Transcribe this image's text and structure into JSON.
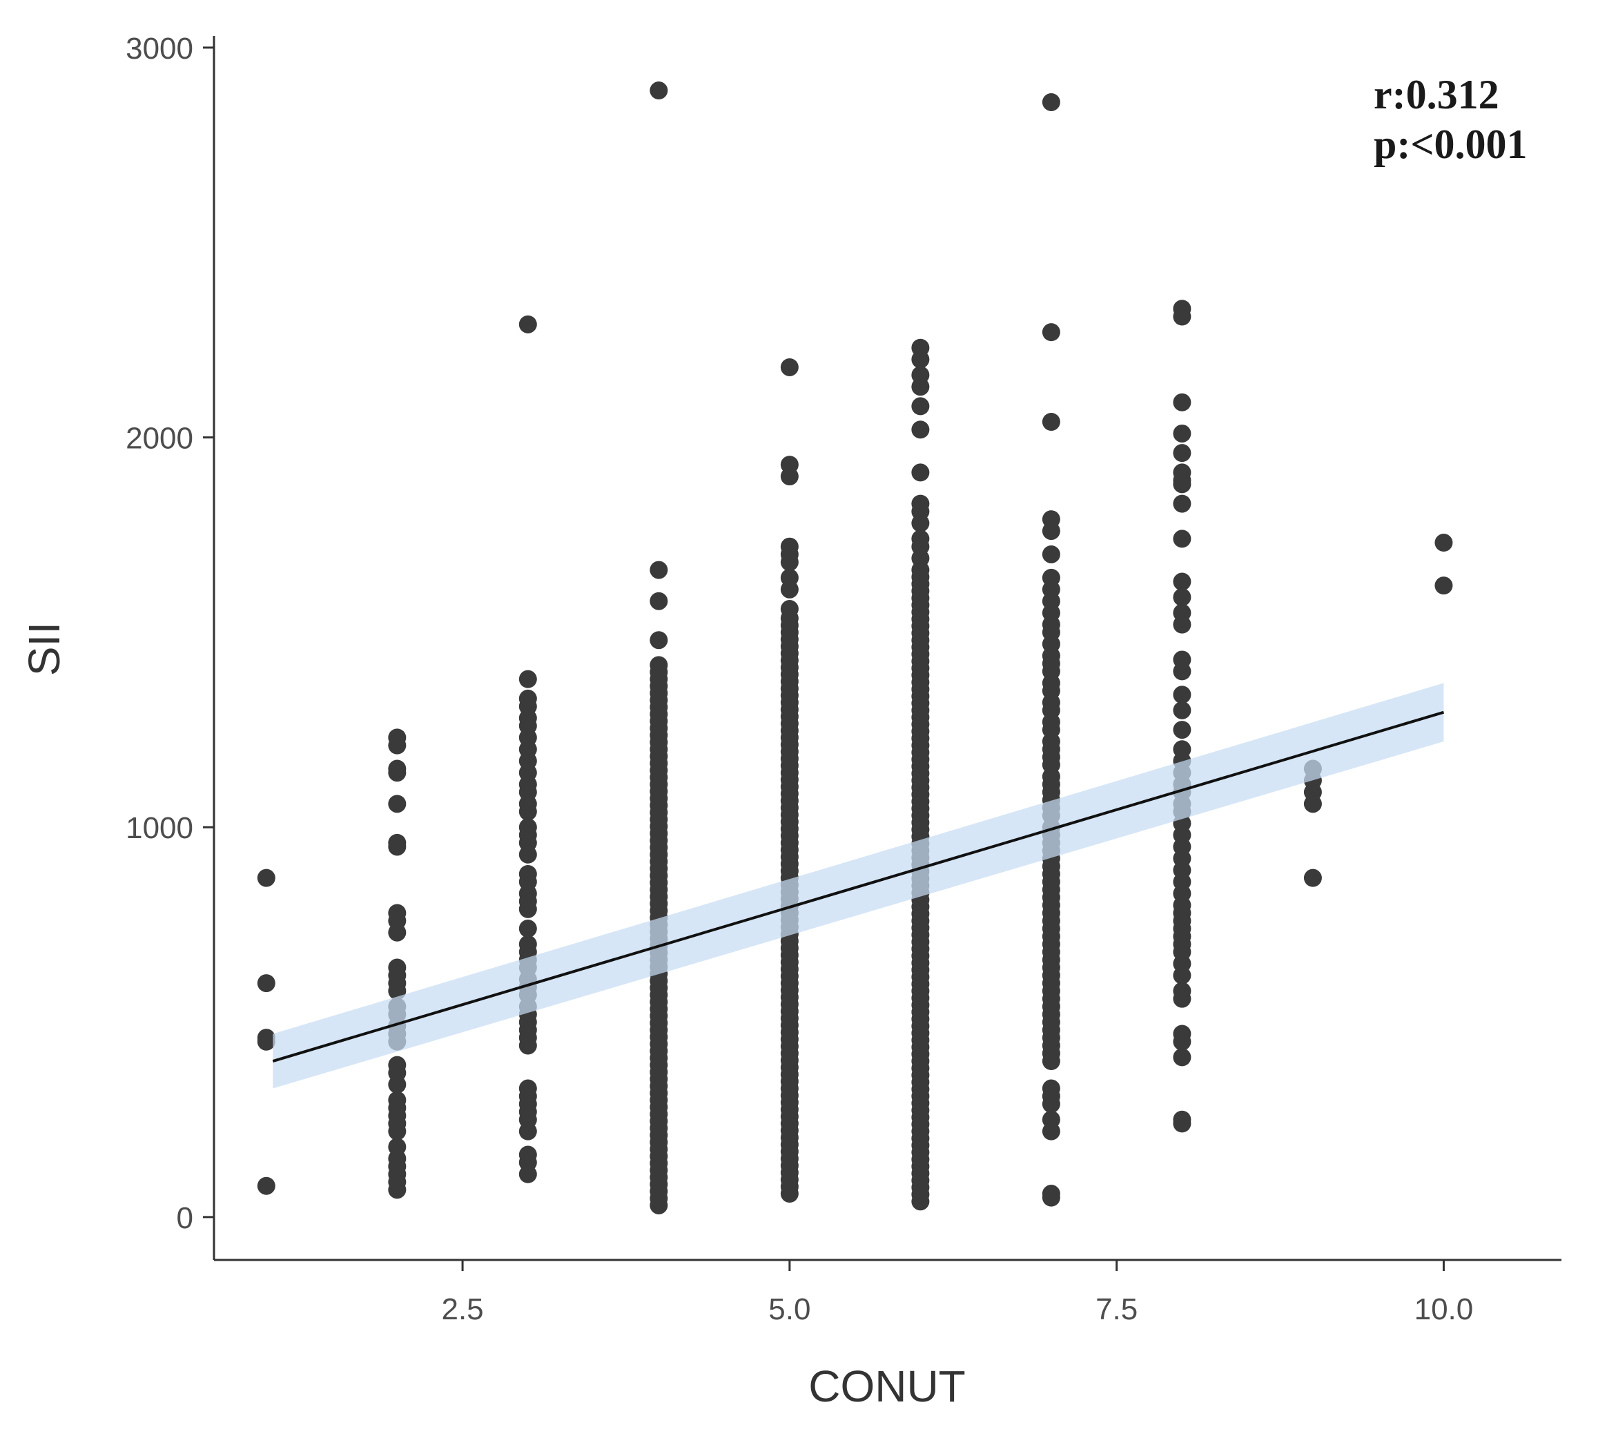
{
  "chart_data": {
    "type": "scatter",
    "title": "",
    "xlabel": "CONUT",
    "ylabel": "SII",
    "xlim": [
      0.6,
      10.9
    ],
    "ylim": [
      -110,
      3030
    ],
    "x_ticks": [
      2.5,
      5.0,
      7.5,
      10.0
    ],
    "x_tick_labels": [
      "2.5",
      "5.0",
      "7.5",
      "10.0"
    ],
    "y_ticks": [
      0,
      1000,
      2000,
      3000
    ],
    "y_tick_labels": [
      "0",
      "1000",
      "2000",
      "3000"
    ],
    "grid": false,
    "legend": "none",
    "annotations": [
      "r:0.312",
      "p:<0.001"
    ],
    "columns": [
      {
        "x": 1,
        "values": [
          870,
          600,
          460,
          450,
          80
        ]
      },
      {
        "x": 2,
        "values": [
          1230,
          1210,
          1150,
          1140,
          1060,
          960,
          950,
          780,
          760,
          730,
          640,
          620,
          600,
          580,
          540,
          520,
          490,
          470,
          450,
          390,
          370,
          340,
          300,
          280,
          260,
          240,
          220,
          180,
          150,
          130,
          110,
          90,
          70
        ]
      },
      {
        "x": 3,
        "values": [
          2290,
          1380,
          1330,
          1310,
          1280,
          1260,
          1230,
          1200,
          1170,
          1140,
          1110,
          1090,
          1060,
          1040,
          1000,
          980,
          960,
          930,
          880,
          860,
          830,
          810,
          790,
          740,
          700,
          680,
          660,
          640,
          610,
          590,
          570,
          540,
          520,
          500,
          480,
          460,
          440,
          330,
          310,
          290,
          270,
          250,
          220,
          160,
          140,
          110
        ]
      },
      {
        "x": 4,
        "values": [
          2890,
          1660,
          1580,
          1480
        ]
      },
      {
        "x": 5,
        "values": [
          2180,
          1930,
          1900,
          1720,
          1700,
          1680,
          1640,
          1610,
          1560
        ]
      },
      {
        "x": 6,
        "values": [
          2230,
          2200,
          2160,
          2130,
          2080,
          2020,
          1910,
          1830,
          1810,
          1780,
          1740,
          1720,
          1690
        ]
      },
      {
        "x": 7,
        "values": [
          2860,
          2270,
          2040,
          1790,
          1760,
          1700,
          1640,
          1610,
          1580,
          1550,
          1520,
          1500,
          1470,
          1440,
          1420,
          1400,
          1370,
          1350,
          1320,
          1300,
          1270,
          1250,
          1220,
          1200,
          1180,
          1160,
          1130,
          1110,
          1090,
          1070,
          1050,
          1030,
          1000,
          980,
          960,
          940,
          920,
          900,
          880,
          860,
          840,
          820,
          800,
          780,
          760,
          740,
          720,
          700,
          680,
          660,
          640,
          620,
          600,
          580,
          560,
          540,
          520,
          500,
          480,
          460,
          440,
          420,
          400,
          330,
          310,
          290,
          250,
          220,
          60,
          50
        ]
      },
      {
        "x": 8,
        "values": [
          2330,
          2310,
          2090,
          2010,
          1960,
          1910,
          1890,
          1880,
          1830,
          1740,
          1630,
          1590,
          1550,
          1520,
          1430,
          1400,
          1340,
          1300,
          1250,
          1200,
          1170,
          1140,
          1110,
          1090,
          1060,
          1040,
          1010,
          980,
          950,
          920,
          890,
          860,
          830,
          800,
          780,
          760,
          740,
          720,
          700,
          680,
          650,
          620,
          580,
          560,
          470,
          450,
          410,
          250,
          240
        ]
      },
      {
        "x": 9,
        "values": [
          1150,
          1120,
          1090,
          1060,
          870
        ]
      },
      {
        "x": 10,
        "values": [
          1730,
          1620
        ]
      }
    ],
    "dense_ranges": [
      {
        "x": 4,
        "from": 30,
        "to": 1420
      },
      {
        "x": 5,
        "from": 60,
        "to": 1540
      },
      {
        "x": 6,
        "from": 40,
        "to": 1670
      }
    ],
    "regression": {
      "x_start": 1.05,
      "x_end": 10.0,
      "y_start": 400,
      "y_end": 1295,
      "ci_at_start": [
        330,
        470
      ],
      "ci_at_end": [
        1220,
        1370
      ]
    },
    "colors": {
      "points": "#3a3a3a",
      "line": "#111111",
      "ci_band": "#c6dcf2",
      "axis": "#333333"
    }
  }
}
